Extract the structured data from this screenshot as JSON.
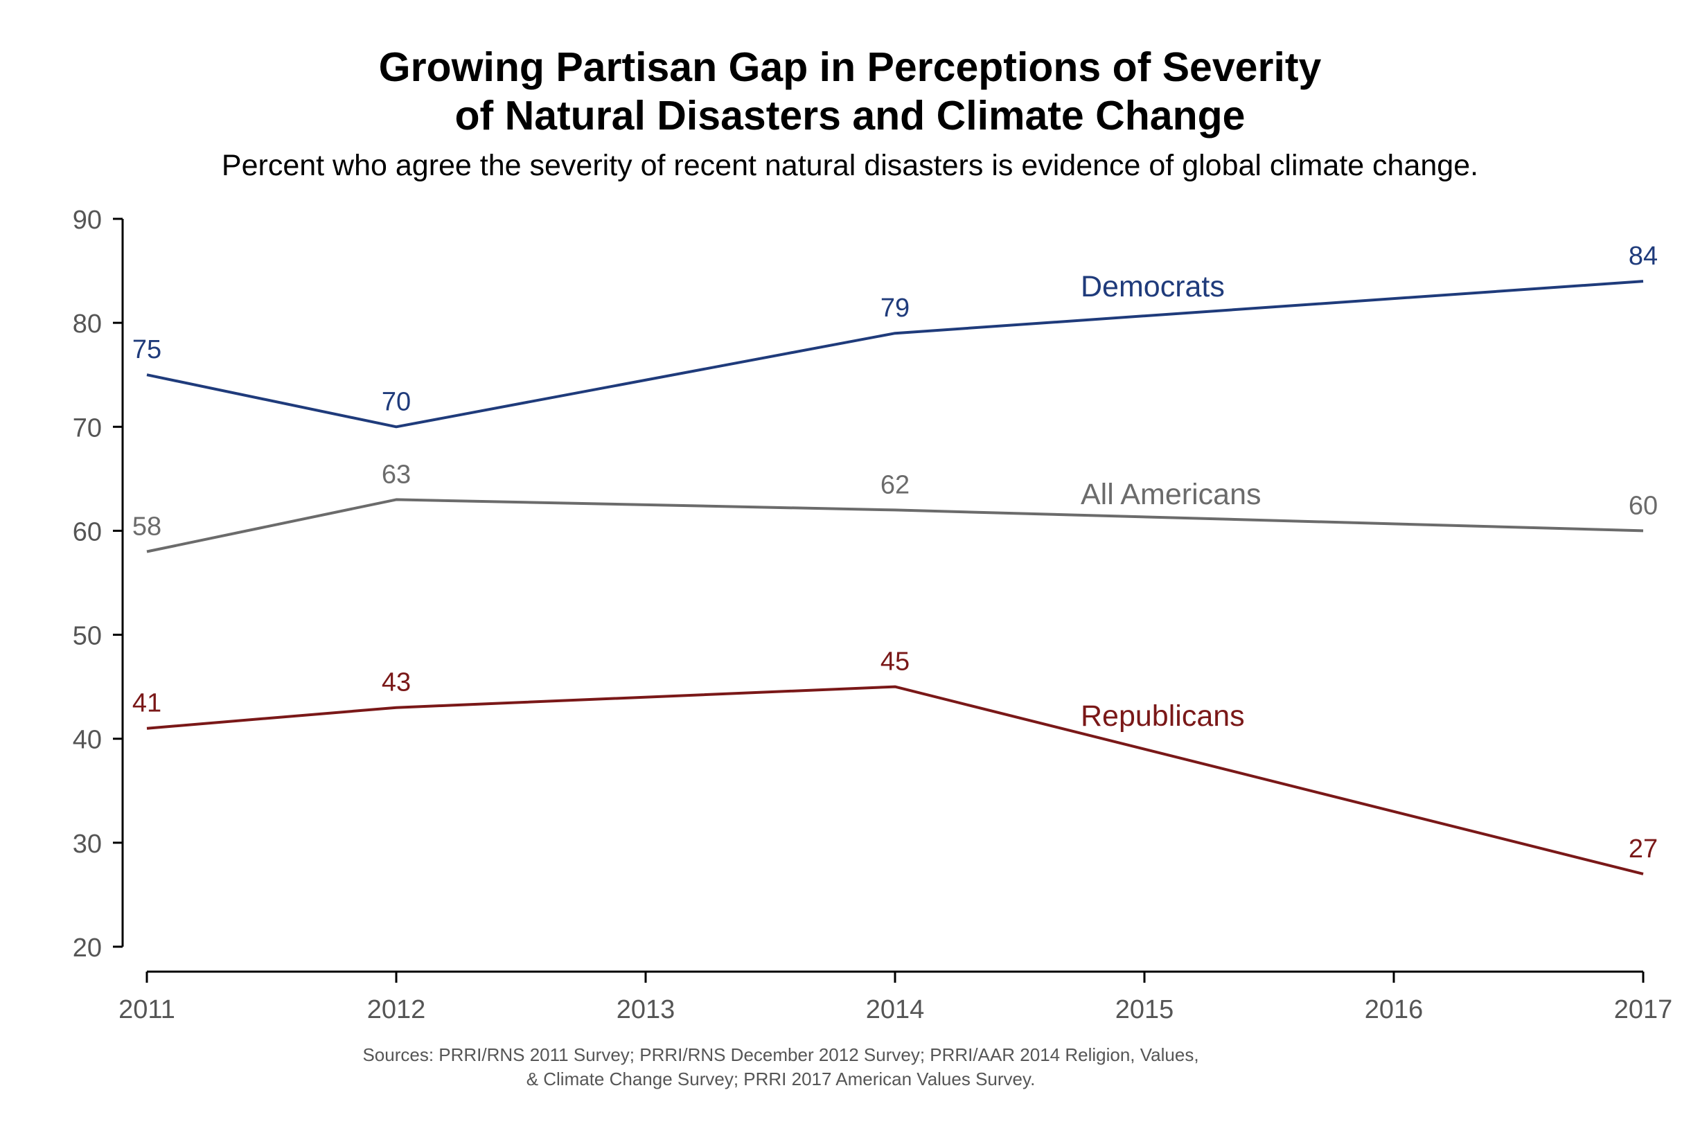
{
  "chart_data": {
    "type": "line",
    "title": "Growing Partisan Gap in Perceptions of Severity",
    "title_line2": "of Natural Disasters and Climate Change",
    "subtitle": "Percent who agree the severity of recent natural disasters is evidence of global climate change.",
    "xlabel": "",
    "ylabel": "",
    "x_ticks": [
      "2011",
      "2012",
      "2013",
      "2014",
      "2015",
      "2016",
      "2017"
    ],
    "y_ticks": [
      "20",
      "30",
      "40",
      "50",
      "60",
      "70",
      "80",
      "90"
    ],
    "xlim": [
      2011,
      2017
    ],
    "ylim": [
      20,
      90
    ],
    "grid": false,
    "legend": "inline labels",
    "series": [
      {
        "name": "Democrats",
        "color": "#1f3b7b",
        "x": [
          2011,
          2012,
          2014,
          2017
        ],
        "values": [
          75,
          70,
          79,
          84
        ],
        "labels": [
          "75",
          "70",
          "79",
          "84"
        ]
      },
      {
        "name": "All Americans",
        "color": "#6b6b6b",
        "x": [
          2011,
          2012,
          2014,
          2017
        ],
        "values": [
          58,
          63,
          62,
          60
        ],
        "labels": [
          "58",
          "63",
          "62",
          "60"
        ]
      },
      {
        "name": "Republicans",
        "color": "#7a1818",
        "x": [
          2011,
          2012,
          2014,
          2017
        ],
        "values": [
          41,
          43,
          45,
          27
        ],
        "labels": [
          "41",
          "43",
          "45",
          "27"
        ]
      }
    ],
    "source_line1": "Sources: PRRI/RNS 2011 Survey; PRRI/RNS December 2012 Survey; PRRI/AAR 2014 Religion, Values,",
    "source_line2": "& Climate Change Survey; PRRI 2017 American Values Survey."
  }
}
